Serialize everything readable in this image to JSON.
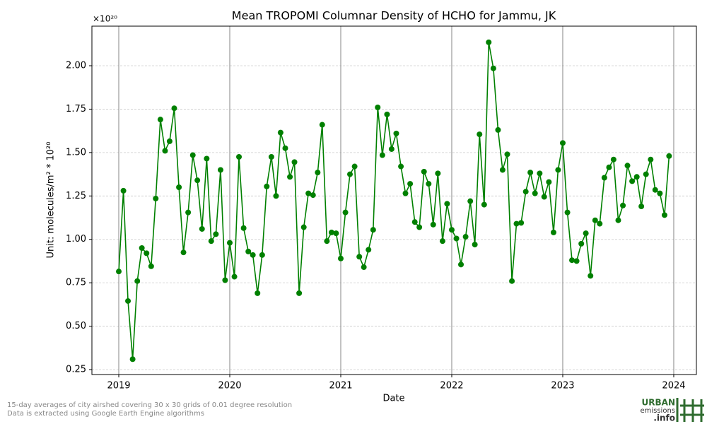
{
  "chart_data": {
    "type": "line",
    "title": "Mean TROPOMI Columnar Density of HCHO for Jammu, JK",
    "x_label": "Date",
    "y_label": "Unit: molecules/m² * 10²⁰",
    "y_offset_label": "×10²⁰",
    "x": [
      2019,
      2019.042,
      2019.083,
      2019.125,
      2019.167,
      2019.208,
      2019.25,
      2019.292,
      2019.333,
      2019.375,
      2019.417,
      2019.458,
      2019.5,
      2019.542,
      2019.583,
      2019.625,
      2019.667,
      2019.708,
      2019.75,
      2019.792,
      2019.833,
      2019.875,
      2019.917,
      2019.958,
      2020,
      2020.042,
      2020.083,
      2020.125,
      2020.167,
      2020.208,
      2020.25,
      2020.292,
      2020.333,
      2020.375,
      2020.417,
      2020.458,
      2020.5,
      2020.542,
      2020.583,
      2020.625,
      2020.667,
      2020.708,
      2020.75,
      2020.792,
      2020.833,
      2020.875,
      2020.917,
      2020.958,
      2021,
      2021.042,
      2021.083,
      2021.125,
      2021.167,
      2021.208,
      2021.25,
      2021.292,
      2021.333,
      2021.375,
      2021.417,
      2021.458,
      2021.5,
      2021.542,
      2021.583,
      2021.625,
      2021.667,
      2021.708,
      2021.75,
      2021.792,
      2021.833,
      2021.875,
      2021.917,
      2021.958,
      2022,
      2022.042,
      2022.083,
      2022.125,
      2022.167,
      2022.208,
      2022.25,
      2022.292,
      2022.333,
      2022.375,
      2022.417,
      2022.458,
      2022.5,
      2022.542,
      2022.583,
      2022.625,
      2022.667,
      2022.708,
      2022.75,
      2022.792,
      2022.833,
      2022.875,
      2022.917,
      2022.958,
      2023,
      2023.042,
      2023.083,
      2023.125,
      2023.167,
      2023.208,
      2023.25,
      2023.292,
      2023.333,
      2023.375,
      2023.417,
      2023.458,
      2023.5,
      2023.542,
      2023.583,
      2023.625,
      2023.667,
      2023.708,
      2023.75,
      2023.792,
      2023.833,
      2023.875,
      2023.917,
      2023.958
    ],
    "series": [
      {
        "color": "#008000",
        "values": [
          0.815,
          1.28,
          0.645,
          0.31,
          0.76,
          0.95,
          0.92,
          0.845,
          1.235,
          1.69,
          1.51,
          1.565,
          1.755,
          1.3,
          0.925,
          1.155,
          1.485,
          1.34,
          1.06,
          1.465,
          0.99,
          1.03,
          1.4,
          0.765,
          0.98,
          0.785,
          1.475,
          1.065,
          0.93,
          0.91,
          0.69,
          0.91,
          1.305,
          1.475,
          1.25,
          1.615,
          1.525,
          1.36,
          1.445,
          0.69,
          1.07,
          1.265,
          1.255,
          1.385,
          1.66,
          0.99,
          1.04,
          1.035,
          0.89,
          1.155,
          1.375,
          1.42,
          0.9,
          0.84,
          0.94,
          1.055,
          1.76,
          1.485,
          1.72,
          1.52,
          1.61,
          1.42,
          1.265,
          1.32,
          1.1,
          1.07,
          1.39,
          1.32,
          1.085,
          1.38,
          0.99,
          1.205,
          1.055,
          1.005,
          0.855,
          1.015,
          1.22,
          0.97,
          1.605,
          1.2,
          2.135,
          1.985,
          1.63,
          1.4,
          1.49,
          0.76,
          1.09,
          1.095,
          1.275,
          1.385,
          1.265,
          1.38,
          1.245,
          1.33,
          1.04,
          1.4,
          1.555,
          1.155,
          0.88,
          0.875,
          0.975,
          1.035,
          0.79,
          1.11,
          1.09,
          1.355,
          1.415,
          1.46,
          1.11,
          1.195,
          1.425,
          1.335,
          1.36,
          1.19,
          1.375,
          1.46,
          1.285,
          1.265,
          1.14,
          1.48
        ]
      }
    ],
    "xlim": [
      2018.758,
      2024.204
    ],
    "ylim": [
      0.2215,
      2.228
    ],
    "xticks": [
      2019,
      2020,
      2021,
      2022,
      2023,
      2024
    ],
    "yticks": [
      0.25,
      {
        "value": 0.5,
        "label": "0.50"
      },
      0.75,
      {
        "value": 1.0,
        "label": "1.00"
      },
      1.25,
      {
        "value": 1.5,
        "label": "1.50"
      },
      1.75,
      {
        "value": 2.0,
        "label": "2.00"
      }
    ],
    "grid": true
  },
  "footnote": [
    "15-day averages of city airshed covering 30 x 30 grids of 0.01 degree resolution",
    "Data is extracted using Google Earth Engine algorithms"
  ],
  "logo": {
    "top": "URBAN",
    "middle": "emissions",
    "bottom": ".info"
  }
}
